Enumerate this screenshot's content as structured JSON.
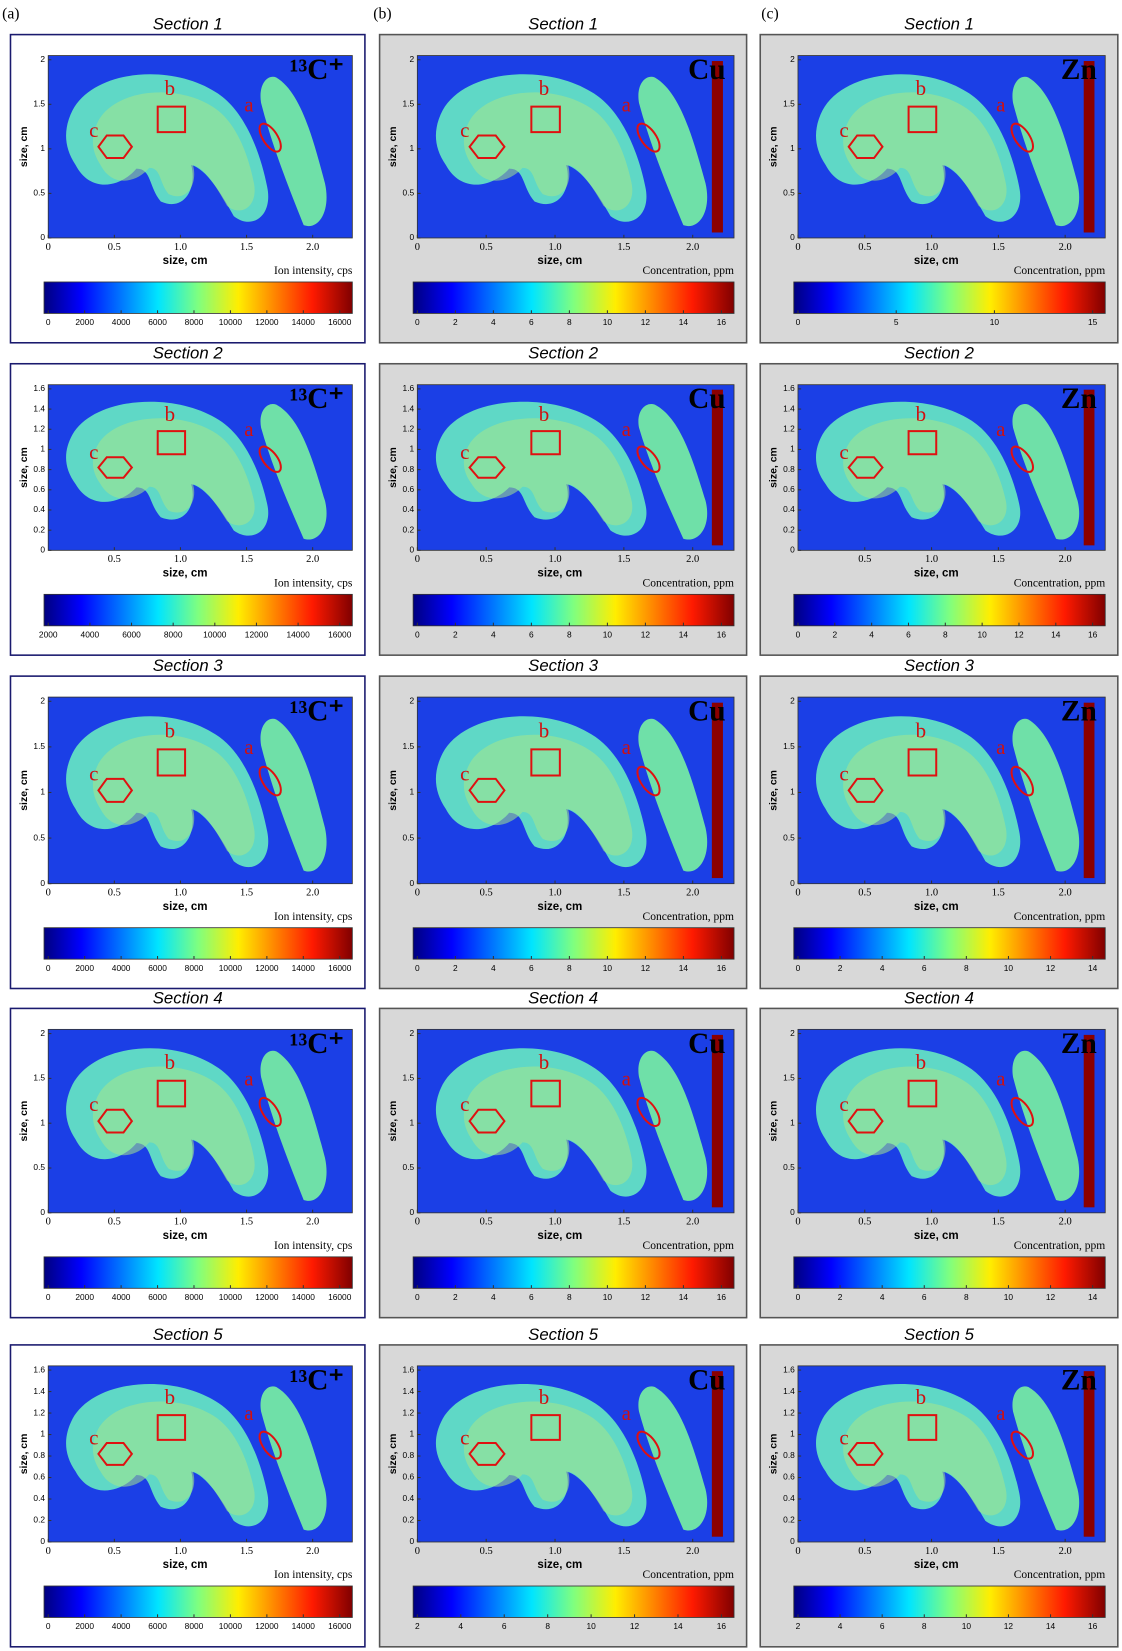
{
  "panel_labels": [
    "(a)",
    "(b)",
    "(c)"
  ],
  "columns": [
    {
      "panels": [
        {
          "title": "Section 1",
          "element": "¹³C⁺",
          "x_label": "size, cm",
          "y_label": "size, cm",
          "xticks": [
            "0",
            "0.5",
            "1.0",
            "1.5",
            "2.0"
          ],
          "yticks": [
            "0",
            "0.5",
            "1",
            "1.5",
            "2"
          ],
          "colorbar_label": "Ion intensity, cps",
          "colorbar_ticks": [
            "0",
            "2000",
            "4000",
            "6000",
            "8000",
            "10000",
            "12000",
            "14000",
            "16000"
          ],
          "region_labels": [
            "a",
            "b",
            "c"
          ]
        },
        {
          "title": "Section 2",
          "element": "¹³C⁺",
          "x_label": "size, cm",
          "y_label": "size, cm",
          "xticks": [
            "0.5",
            "1.0",
            "1.5",
            "2.0"
          ],
          "yticks": [
            "0",
            "0.2",
            "0.4",
            "0.6",
            "0.8",
            "1",
            "1.2",
            "1.4",
            "1.6"
          ],
          "colorbar_label": "Ion intensity, cps",
          "colorbar_ticks": [
            "2000",
            "4000",
            "6000",
            "8000",
            "10000",
            "12000",
            "14000",
            "16000"
          ],
          "region_labels": [
            "a",
            "b",
            "c"
          ]
        },
        {
          "title": "Section 3",
          "element": "¹³C⁺",
          "x_label": "size, cm",
          "y_label": "size, cm",
          "xticks": [
            "0",
            "0.5",
            "1.0",
            "1.5",
            "2.0"
          ],
          "yticks": [
            "0",
            "0.5",
            "1",
            "1.5",
            "2"
          ],
          "colorbar_label": "Ion intensity, cps",
          "colorbar_ticks": [
            "0",
            "2000",
            "4000",
            "6000",
            "8000",
            "10000",
            "12000",
            "14000",
            "16000"
          ],
          "region_labels": [
            "a",
            "b",
            "c"
          ]
        },
        {
          "title": "Section 4",
          "element": "¹³C⁺",
          "x_label": "size, cm",
          "y_label": "size, cm",
          "xticks": [
            "0",
            "0.5",
            "1.0",
            "1.5",
            "2.0"
          ],
          "yticks": [
            "0",
            "0.5",
            "1",
            "1.5",
            "2"
          ],
          "colorbar_label": "Ion intensity, cps",
          "colorbar_ticks": [
            "0",
            "2000",
            "4000",
            "6000",
            "8000",
            "10000",
            "12000",
            "14000",
            "16000"
          ],
          "region_labels": [
            "a",
            "b",
            "c"
          ]
        },
        {
          "title": "Section 5",
          "element": "¹³C⁺",
          "x_label": "size, cm",
          "y_label": "size, cm",
          "xticks": [
            "0",
            "0.5",
            "1.0",
            "1.5",
            "2.0"
          ],
          "yticks": [
            "0",
            "0.2",
            "0.4",
            "0.6",
            "0.8",
            "1",
            "1.2",
            "1.4",
            "1.6"
          ],
          "colorbar_label": "Ion intensity, cps",
          "colorbar_ticks": [
            "0",
            "2000",
            "4000",
            "6000",
            "8000",
            "10000",
            "12000",
            "14000",
            "16000"
          ],
          "region_labels": [
            "a",
            "b",
            "c"
          ]
        }
      ]
    },
    {
      "panels": [
        {
          "title": "Section 1",
          "element": "Cu",
          "x_label": "size, cm",
          "y_label": "size, cm",
          "xticks": [
            "0",
            "0.5",
            "1.0",
            "1.5",
            "2.0"
          ],
          "yticks": [
            "0",
            "0.5",
            "1",
            "1.5",
            "2"
          ],
          "colorbar_label": "Concentration, ppm",
          "colorbar_ticks": [
            "0",
            "2",
            "4",
            "6",
            "8",
            "10",
            "12",
            "14",
            "16"
          ],
          "region_labels": [
            "a",
            "b",
            "c"
          ]
        },
        {
          "title": "Section 2",
          "element": "Cu",
          "x_label": "size, cm",
          "y_label": "size, cm",
          "xticks": [
            "0",
            "0.5",
            "1.0",
            "1.5",
            "2.0"
          ],
          "yticks": [
            "0",
            "0.2",
            "0.4",
            "0.6",
            "0.8",
            "1",
            "1.2",
            "1.4",
            "1.6"
          ],
          "colorbar_label": "Concentration, ppm",
          "colorbar_ticks": [
            "0",
            "2",
            "4",
            "6",
            "8",
            "10",
            "12",
            "14",
            "16"
          ],
          "region_labels": [
            "a",
            "b",
            "c"
          ]
        },
        {
          "title": "Section 3",
          "element": "Cu",
          "x_label": "size, cm",
          "y_label": "size, cm",
          "xticks": [
            "0",
            "0.5",
            "1.0",
            "1.5",
            "2.0"
          ],
          "yticks": [
            "0",
            "0.5",
            "1",
            "1.5",
            "2"
          ],
          "colorbar_label": "Concentration, ppm",
          "colorbar_ticks": [
            "0",
            "2",
            "4",
            "6",
            "8",
            "10",
            "12",
            "14",
            "16"
          ],
          "region_labels": [
            "a",
            "b",
            "c"
          ]
        },
        {
          "title": "Section 4",
          "element": "Cu",
          "x_label": "size, cm",
          "y_label": "size, cm",
          "xticks": [
            "0",
            "0.5",
            "1.0",
            "1.5",
            "2.0"
          ],
          "yticks": [
            "0",
            "0.5",
            "1",
            "1.5",
            "2"
          ],
          "colorbar_label": "Concentration, ppm",
          "colorbar_ticks": [
            "0",
            "2",
            "4",
            "6",
            "8",
            "10",
            "12",
            "14",
            "16"
          ],
          "region_labels": [
            "a",
            "b",
            "c"
          ]
        },
        {
          "title": "Section 5",
          "element": "Cu",
          "x_label": "size, cm",
          "y_label": "size, cm",
          "xticks": [
            "0",
            "0.5",
            "1.0",
            "1.5",
            "2.0"
          ],
          "yticks": [
            "0",
            "0.2",
            "0.4",
            "0.6",
            "0.8",
            "1",
            "1.2",
            "1.4",
            "1.6"
          ],
          "colorbar_label": "Concentration, ppm",
          "colorbar_ticks": [
            "2",
            "4",
            "6",
            "8",
            "10",
            "12",
            "14",
            "16"
          ],
          "region_labels": [
            "a",
            "b",
            "c"
          ]
        }
      ]
    },
    {
      "panels": [
        {
          "title": "Section 1",
          "element": "Zn",
          "x_label": "size, cm",
          "y_label": "size, cm",
          "xticks": [
            "0",
            "0.5",
            "1.0",
            "1.5",
            "2.0"
          ],
          "yticks": [
            "0",
            "0.5",
            "1",
            "1.5",
            "2"
          ],
          "colorbar_label": "Concentration, ppm",
          "colorbar_ticks": [
            "0",
            "5",
            "10",
            "15"
          ],
          "region_labels": [
            "a",
            "b",
            "c"
          ]
        },
        {
          "title": "Section 2",
          "element": "Zn",
          "x_label": "size, cm",
          "y_label": "size, cm",
          "xticks": [
            "0.5",
            "1.0",
            "1.5",
            "2.0"
          ],
          "yticks": [
            "0",
            "0.2",
            "0.4",
            "0.6",
            "0.8",
            "1",
            "1.2",
            "1.4",
            "1.6"
          ],
          "colorbar_label": "Concentration, ppm",
          "colorbar_ticks": [
            "0",
            "2",
            "4",
            "6",
            "8",
            "10",
            "12",
            "14",
            "16"
          ],
          "region_labels": [
            "a",
            "b",
            "c"
          ]
        },
        {
          "title": "Section 3",
          "element": "Zn",
          "x_label": "size, cm",
          "y_label": "size, cm",
          "xticks": [
            "0",
            "0.5",
            "1.0",
            "1.5",
            "2.0"
          ],
          "yticks": [
            "0",
            "0.5",
            "1",
            "1.5",
            "2"
          ],
          "colorbar_label": "Concentration, ppm",
          "colorbar_ticks": [
            "0",
            "2",
            "4",
            "6",
            "8",
            "10",
            "12",
            "14"
          ],
          "region_labels": [
            "a",
            "b",
            "c"
          ]
        },
        {
          "title": "Section 4",
          "element": "Zn",
          "x_label": "size, cm",
          "y_label": "size, cm",
          "xticks": [
            "0",
            "0.5",
            "1.0",
            "1.5",
            "2.0"
          ],
          "yticks": [
            "0",
            "0.5",
            "1",
            "1.5",
            "2"
          ],
          "colorbar_label": "Concentration, ppm",
          "colorbar_ticks": [
            "0",
            "2",
            "4",
            "6",
            "8",
            "10",
            "12",
            "14"
          ],
          "region_labels": [
            "a",
            "b",
            "c"
          ]
        },
        {
          "title": "Section 5",
          "element": "Zn",
          "x_label": "size, cm",
          "y_label": "size, cm",
          "xticks": [
            "0",
            "0.5",
            "1.0",
            "1.5",
            "2.0"
          ],
          "yticks": [
            "0",
            "0.2",
            "0.4",
            "0.6",
            "0.8",
            "1",
            "1.2",
            "1.4",
            "1.6"
          ],
          "colorbar_label": "Concentration, ppm",
          "colorbar_ticks": [
            "2",
            "4",
            "6",
            "8",
            "10",
            "12",
            "14",
            "16"
          ],
          "region_labels": [
            "a",
            "b",
            "c"
          ]
        }
      ]
    }
  ]
}
